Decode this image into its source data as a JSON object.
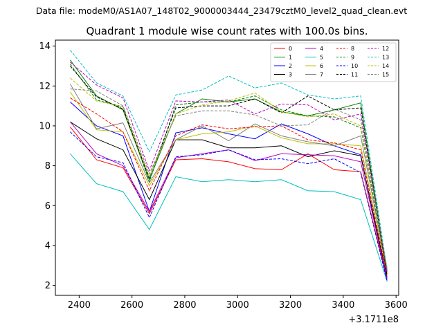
{
  "suptitle": "Data file: modeM0/AS1A07_148T02_9000003444_23479cztM0_level2_quad_clean.evt",
  "title": "Quadrant 1 module wise count rates with 100.0s bins.",
  "offset_label": "+3.1711e8",
  "chart_data": {
    "type": "line",
    "title": "Quadrant 1 module wise count rates with 100.0s bins.",
    "xlabel": "",
    "ylabel": "",
    "x_offset": 317110000,
    "x": [
      2366,
      2466,
      2566,
      2666,
      2766,
      2866,
      2966,
      3066,
      3166,
      3266,
      3366,
      3466,
      3566
    ],
    "xlim": [
      2310,
      3610
    ],
    "ylim": [
      1.5,
      14.3
    ],
    "xticks": [
      2400,
      2600,
      2800,
      3000,
      3200,
      3400,
      3600
    ],
    "yticks": [
      2,
      4,
      6,
      8,
      10,
      12,
      14
    ],
    "grid": false,
    "legend_position": "top-right",
    "legend_columns": 4,
    "series": [
      {
        "name": "0",
        "color": "#ff0000",
        "style": "solid",
        "values": [
          9.95,
          8.3,
          7.9,
          5.6,
          8.3,
          8.35,
          8.2,
          7.85,
          7.8,
          8.6,
          7.8,
          7.7,
          2.3
        ]
      },
      {
        "name": "1",
        "color": "#008000",
        "style": "solid",
        "values": [
          13.3,
          11.5,
          10.8,
          7.3,
          10.6,
          11.35,
          11.2,
          11.35,
          10.7,
          10.5,
          10.8,
          11.15,
          2.6
        ]
      },
      {
        "name": "2",
        "color": "#0000ff",
        "style": "solid",
        "values": [
          11.2,
          10.0,
          9.5,
          5.7,
          9.65,
          9.9,
          9.6,
          9.35,
          10.1,
          9.6,
          9.0,
          8.55,
          2.2
        ]
      },
      {
        "name": "3",
        "color": "#000000",
        "style": "solid",
        "values": [
          10.2,
          9.35,
          8.8,
          6.3,
          9.3,
          9.3,
          8.9,
          8.9,
          9.0,
          8.45,
          8.75,
          8.5,
          2.4
        ]
      },
      {
        "name": "4",
        "color": "#bf00bf",
        "style": "solid",
        "values": [
          10.2,
          8.6,
          8.0,
          5.7,
          8.4,
          8.6,
          8.8,
          8.25,
          8.6,
          8.55,
          8.5,
          8.2,
          2.3
        ]
      },
      {
        "name": "5",
        "color": "#00bfbf",
        "style": "solid",
        "values": [
          8.6,
          7.1,
          6.7,
          4.8,
          7.45,
          7.2,
          7.3,
          7.2,
          7.3,
          6.75,
          6.7,
          6.3,
          2.2
        ]
      },
      {
        "name": "6",
        "color": "#bfbf00",
        "style": "solid",
        "values": [
          11.7,
          9.8,
          9.7,
          7.0,
          9.3,
          9.6,
          9.7,
          10.0,
          9.4,
          9.1,
          9.1,
          9.0,
          2.6
        ]
      },
      {
        "name": "7",
        "color": "#808080",
        "style": "solid",
        "values": [
          12.1,
          9.85,
          10.15,
          7.15,
          9.3,
          10.0,
          9.25,
          10.1,
          9.5,
          9.2,
          9.0,
          9.5,
          2.7
        ]
      },
      {
        "name": "8",
        "color": "#ff0000",
        "style": "dashed",
        "values": [
          11.4,
          10.6,
          9.7,
          6.75,
          9.5,
          10.05,
          9.85,
          9.95,
          10.0,
          9.3,
          9.15,
          8.8,
          2.5
        ]
      },
      {
        "name": "9",
        "color": "#008000",
        "style": "dashed",
        "values": [
          13.1,
          11.3,
          10.95,
          7.2,
          11.05,
          11.2,
          11.2,
          11.5,
          10.8,
          10.5,
          10.45,
          9.9,
          2.7
        ]
      },
      {
        "name": "10",
        "color": "#0000ff",
        "style": "dashed",
        "values": [
          9.7,
          8.45,
          8.15,
          5.4,
          8.45,
          8.55,
          8.8,
          8.3,
          8.35,
          8.1,
          8.35,
          7.65,
          2.2
        ]
      },
      {
        "name": "11",
        "color": "#000000",
        "style": "dashed",
        "values": [
          13.0,
          11.45,
          10.85,
          7.4,
          10.9,
          11.0,
          11.0,
          11.35,
          10.65,
          11.5,
          10.8,
          10.9,
          2.5
        ]
      },
      {
        "name": "12",
        "color": "#bf00bf",
        "style": "dashed",
        "values": [
          13.2,
          12.05,
          11.4,
          7.75,
          11.25,
          11.2,
          11.3,
          10.6,
          11.1,
          11.05,
          10.3,
          10.6,
          2.7
        ]
      },
      {
        "name": "13",
        "color": "#00bfbf",
        "style": "dashed",
        "values": [
          13.8,
          12.15,
          11.5,
          8.7,
          11.55,
          11.8,
          12.5,
          11.9,
          12.15,
          11.55,
          11.35,
          11.5,
          2.8
        ]
      },
      {
        "name": "14",
        "color": "#bfbf00",
        "style": "dashed",
        "values": [
          12.4,
          11.25,
          10.95,
          7.45,
          10.6,
          11.05,
          11.25,
          11.65,
          10.7,
          10.45,
          10.6,
          10.0,
          2.9
        ]
      },
      {
        "name": "15",
        "color": "#808080",
        "style": "dashed",
        "values": [
          11.85,
          11.75,
          11.0,
          7.6,
          10.5,
          10.75,
          10.75,
          10.55,
          10.0,
          10.05,
          10.85,
          10.3,
          2.8
        ]
      }
    ]
  }
}
